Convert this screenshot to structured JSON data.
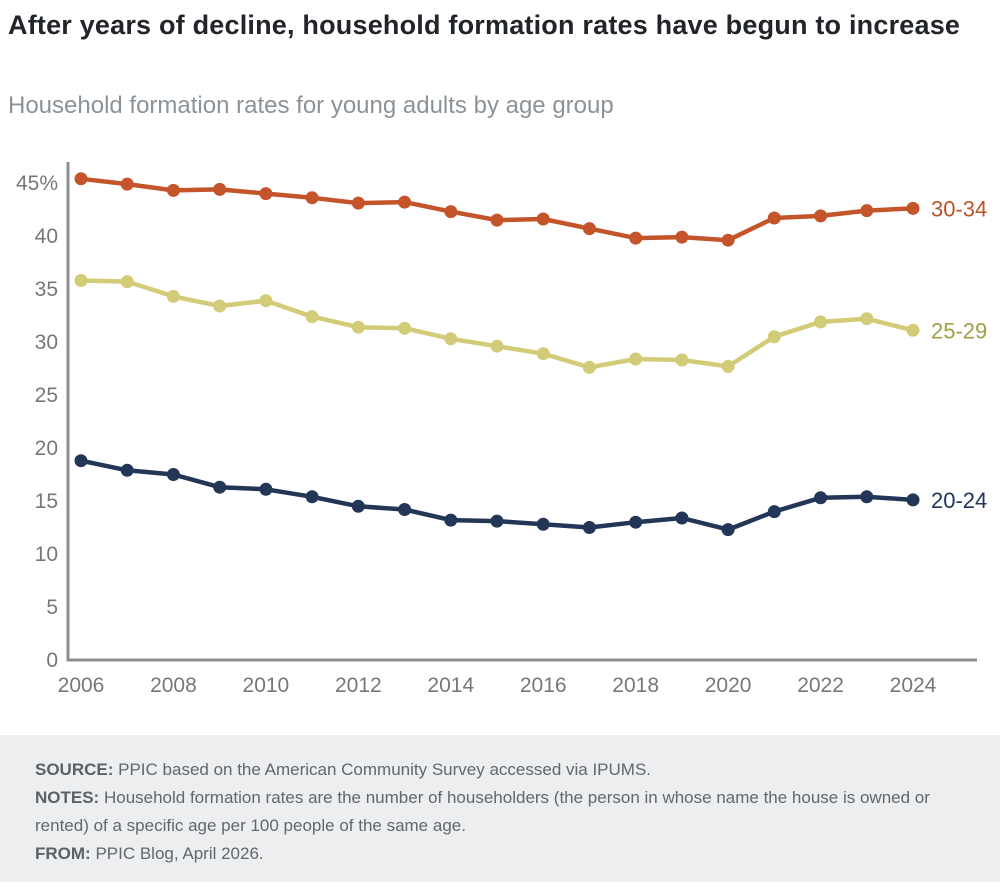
{
  "header": {
    "title": "After years of decline, household formation rates have begun to increase",
    "subtitle": "Household formation rates for young adults by age group"
  },
  "chart_data": {
    "type": "line",
    "title": "Household formation rates for young adults by age group",
    "xlabel": "",
    "ylabel": "",
    "x": [
      2006,
      2007,
      2008,
      2009,
      2010,
      2011,
      2012,
      2013,
      2014,
      2015,
      2016,
      2017,
      2018,
      2019,
      2020,
      2021,
      2022,
      2023,
      2024
    ],
    "x_ticks": [
      2006,
      2008,
      2010,
      2012,
      2014,
      2016,
      2018,
      2020,
      2022,
      2024
    ],
    "x_tick_labels": [
      "2006",
      "2008",
      "2010",
      "2012",
      "2014",
      "2016",
      "2018",
      "2020",
      "2022",
      "2024"
    ],
    "y_ticks": [
      0,
      5,
      10,
      15,
      20,
      25,
      30,
      35,
      40,
      45
    ],
    "y_tick_labels": [
      "0",
      "5",
      "10",
      "15",
      "20",
      "25",
      "30",
      "35",
      "40",
      "45%"
    ],
    "ylim": [
      0,
      45
    ],
    "grid": false,
    "legend_position": "right-end-labels",
    "series": [
      {
        "name": "30-34",
        "color": "#C4552B",
        "label_color": "#BE5227",
        "values": [
          45.4,
          44.9,
          44.3,
          44.4,
          44.0,
          43.6,
          43.1,
          43.2,
          42.3,
          41.5,
          41.6,
          40.7,
          39.8,
          39.9,
          39.6,
          41.7,
          41.9,
          42.4,
          42.6
        ]
      },
      {
        "name": "25-29",
        "color": "#D2CB77",
        "label_color": "#A09F46",
        "values": [
          35.8,
          35.7,
          34.3,
          33.4,
          33.9,
          32.4,
          31.4,
          31.3,
          30.3,
          29.6,
          28.9,
          27.6,
          28.4,
          28.3,
          27.7,
          30.5,
          31.9,
          32.2,
          31.1
        ]
      },
      {
        "name": "20-24",
        "color": "#233658",
        "label_color": "#233658",
        "values": [
          18.8,
          17.9,
          17.5,
          16.3,
          16.1,
          15.4,
          14.5,
          14.2,
          13.2,
          13.1,
          12.8,
          12.5,
          13.0,
          13.4,
          12.3,
          14.0,
          15.3,
          15.4,
          15.1
        ]
      }
    ]
  },
  "footer": {
    "source_label": "SOURCE:",
    "source_text": " PPIC based on the American Community Survey accessed via IPUMS.",
    "notes_label": "NOTES:",
    "notes_text": " Household formation rates are the number of householders (the person in whose name the house is owned or rented) of a specific age per 100 people of the same age.",
    "from_label": "FROM:",
    "from_text": " PPIC Blog, April 2026."
  }
}
